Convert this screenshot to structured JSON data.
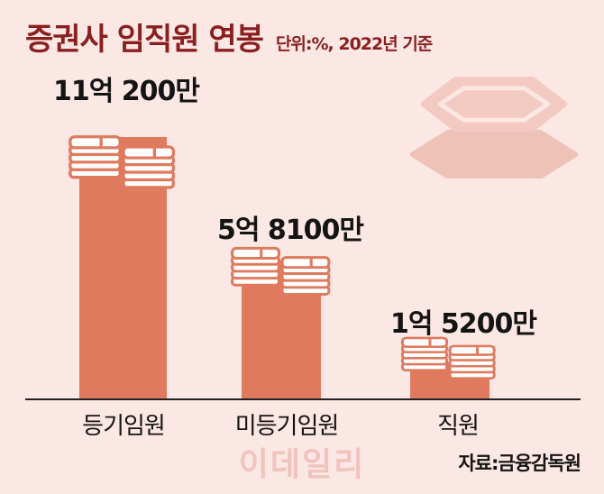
{
  "page": {
    "title": "증권사 임직원 연봉",
    "subtitle": "단위:%, 2022년 기준",
    "source": "자료:금융감독원",
    "watermark": "이데일리"
  },
  "icons": {
    "coin": "hexagon-coin-icon",
    "money": "money-stack-icon"
  },
  "chart_data": {
    "type": "bar",
    "title": "증권사 임직원 연봉",
    "subtitle": "단위:%, 2022년 기준",
    "categories": [
      "등기임원",
      "미등기임원",
      "직원"
    ],
    "values": [
      110200,
      58100,
      15200
    ],
    "unit": "만원",
    "value_labels": [
      "11억 200만",
      "5억 8100만",
      "1억 5200만"
    ],
    "ylim": [
      0,
      110200
    ],
    "grid": false,
    "legend": "none",
    "source": "자료:금융감독원",
    "watermark": "이데일리",
    "colors": {
      "background": "#fbe7e3",
      "bar": "#df7a5e",
      "title": "#8a1f1f",
      "text": "#141414",
      "watermark": "#f2c3bd",
      "coin_icon": "#efc2b7"
    }
  }
}
